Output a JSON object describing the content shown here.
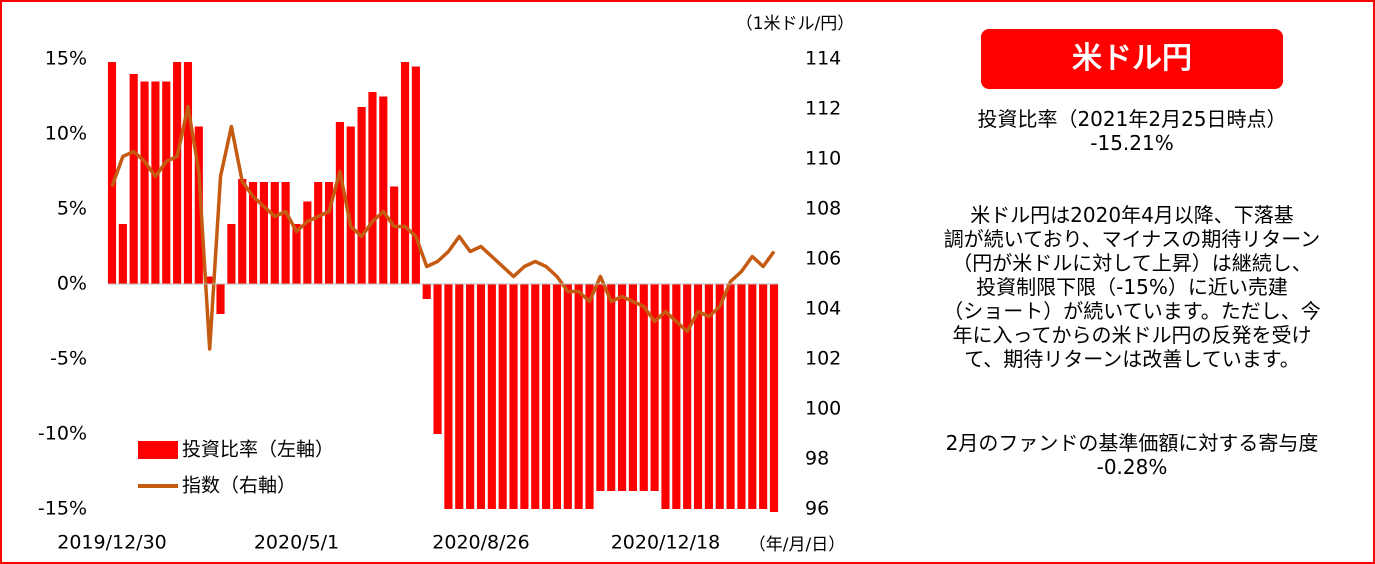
{
  "chart_data": {
    "type": "combo",
    "categories": [
      "2019/12/30",
      null,
      null,
      null,
      null,
      null,
      null,
      null,
      null,
      null,
      null,
      null,
      null,
      null,
      null,
      null,
      null,
      "2020/5/1",
      null,
      null,
      null,
      null,
      null,
      null,
      null,
      null,
      null,
      null,
      null,
      null,
      null,
      null,
      null,
      null,
      "2020/8/26",
      null,
      null,
      null,
      null,
      null,
      null,
      null,
      null,
      null,
      null,
      null,
      null,
      null,
      null,
      null,
      null,
      "2020/12/18",
      null,
      null,
      null,
      null,
      null,
      null,
      null,
      null,
      null,
      null
    ],
    "x_unit": "（年/月/日）",
    "y2_label": "（1米ドル/円）",
    "ylim": [
      -15,
      15
    ],
    "yticks": [
      {
        "value": -15,
        "label": "-15%"
      },
      {
        "value": -10,
        "label": "-10%"
      },
      {
        "value": -5,
        "label": "-5%"
      },
      {
        "value": 0,
        "label": "0%"
      },
      {
        "value": 5,
        "label": "5%"
      },
      {
        "value": 10,
        "label": "10%"
      },
      {
        "value": 15,
        "label": "15%"
      }
    ],
    "y2lim": [
      96,
      114
    ],
    "y2ticks": [
      96,
      98,
      100,
      102,
      104,
      106,
      108,
      110,
      112,
      114
    ],
    "legend": "bottom-left",
    "series": [
      {
        "name": "投資比率（左軸）",
        "type": "bar",
        "axis": "y",
        "color": "#ff0000",
        "values": [
          14.8,
          4,
          14,
          13.5,
          13.5,
          13.5,
          14.8,
          14.8,
          10.5,
          0.5,
          -2,
          4,
          7,
          6.8,
          6.8,
          6.8,
          6.8,
          4,
          5.5,
          6.8,
          6.8,
          10.8,
          10.5,
          11.8,
          12.8,
          12.5,
          6.5,
          14.8,
          14.5,
          -1,
          -10,
          -15,
          -15,
          -15,
          -15,
          -15,
          -15,
          -15,
          -15,
          -15,
          -15,
          -15,
          -15,
          -15,
          -15,
          -13.8,
          -13.8,
          -13.8,
          -13.8,
          -13.8,
          -13.8,
          -15,
          -15,
          -15,
          -15,
          -15,
          -15,
          -15,
          -15,
          -15,
          -15,
          -15.2
        ]
      },
      {
        "name": "指数（右軸）",
        "type": "line",
        "axis": "y2",
        "color": "#c55a11",
        "values": [
          108.9,
          110.1,
          110.3,
          109.9,
          109.3,
          109.9,
          110.1,
          112.1,
          109.5,
          102.4,
          109.3,
          111.3,
          109.1,
          108.5,
          108.1,
          107.7,
          107.9,
          107.1,
          107.5,
          107.7,
          107.9,
          109.5,
          107.3,
          106.9,
          107.5,
          107.9,
          107.3,
          107.3,
          106.9,
          105.7,
          105.9,
          106.3,
          106.9,
          106.3,
          106.5,
          106.1,
          105.7,
          105.3,
          105.7,
          105.9,
          105.7,
          105.3,
          104.7,
          104.7,
          104.3,
          105.3,
          104.3,
          104.5,
          104.3,
          104.1,
          103.5,
          103.9,
          103.5,
          103.1,
          103.9,
          103.7,
          104.1,
          105.1,
          105.5,
          106.1,
          105.7,
          106.3
        ]
      }
    ]
  },
  "panel": {
    "title": "米ドル円",
    "ratio_label": "投資比率（2021年2月25日時点）",
    "ratio_value": "-15.21%",
    "paragraph": [
      "米ドル円は2020年4月以降、下落基",
      "調が続いており、マイナスの期待リターン",
      "（円が米ドルに対して上昇）は継続し、",
      "投資制限下限（-15%）に近い売建",
      "（ショート）が続いています。ただし、今",
      "年に入ってからの米ドル円の反発を受け",
      "て、期待リターンは改善しています。"
    ],
    "contribution_label": "2月のファンドの基準価額に対する寄与度",
    "contribution_value": "-0.28%"
  }
}
